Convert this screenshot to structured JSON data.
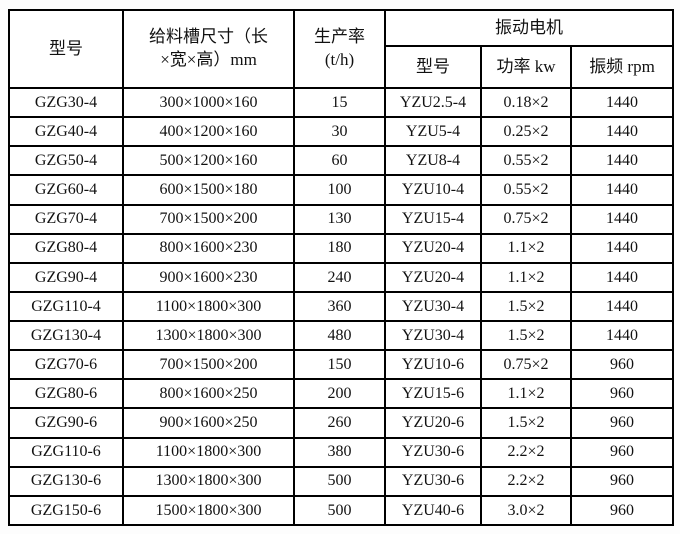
{
  "table": {
    "headers": {
      "model": "型号",
      "trough_size_line1": "给料槽尺寸（长",
      "trough_size_line2": "×宽×高）mm",
      "rate_line1": "生产率",
      "rate_line2": "(t/h)",
      "motor_group": "振动电机",
      "motor_model": "型号",
      "motor_power": "功率 kw",
      "motor_freq": "振频 rpm"
    },
    "rows": [
      [
        "GZG30-4",
        "300×1000×160",
        "15",
        "YZU2.5-4",
        "0.18×2",
        "1440"
      ],
      [
        "GZG40-4",
        "400×1200×160",
        "30",
        "YZU5-4",
        "0.25×2",
        "1440"
      ],
      [
        "GZG50-4",
        "500×1200×160",
        "60",
        "YZU8-4",
        "0.55×2",
        "1440"
      ],
      [
        "GZG60-4",
        "600×1500×180",
        "100",
        "YZU10-4",
        "0.55×2",
        "1440"
      ],
      [
        "GZG70-4",
        "700×1500×200",
        "130",
        "YZU15-4",
        "0.75×2",
        "1440"
      ],
      [
        "GZG80-4",
        "800×1600×230",
        "180",
        "YZU20-4",
        "1.1×2",
        "1440"
      ],
      [
        "GZG90-4",
        "900×1600×230",
        "240",
        "YZU20-4",
        "1.1×2",
        "1440"
      ],
      [
        "GZG110-4",
        "1100×1800×300",
        "360",
        "YZU30-4",
        "1.5×2",
        "1440"
      ],
      [
        "GZG130-4",
        "1300×1800×300",
        "480",
        "YZU30-4",
        "1.5×2",
        "1440"
      ],
      [
        "GZG70-6",
        "700×1500×200",
        "150",
        "YZU10-6",
        "0.75×2",
        "960"
      ],
      [
        "GZG80-6",
        "800×1600×250",
        "200",
        "YZU15-6",
        "1.1×2",
        "960"
      ],
      [
        "GZG90-6",
        "900×1600×250",
        "260",
        "YZU20-6",
        "1.5×2",
        "960"
      ],
      [
        "GZG110-6",
        "1100×1800×300",
        "380",
        "YZU30-6",
        "2.2×2",
        "960"
      ],
      [
        "GZG130-6",
        "1300×1800×300",
        "500",
        "YZU30-6",
        "2.2×2",
        "960"
      ],
      [
        "GZG150-6",
        "1500×1800×300",
        "500",
        "YZU40-6",
        "3.0×2",
        "960"
      ]
    ]
  }
}
